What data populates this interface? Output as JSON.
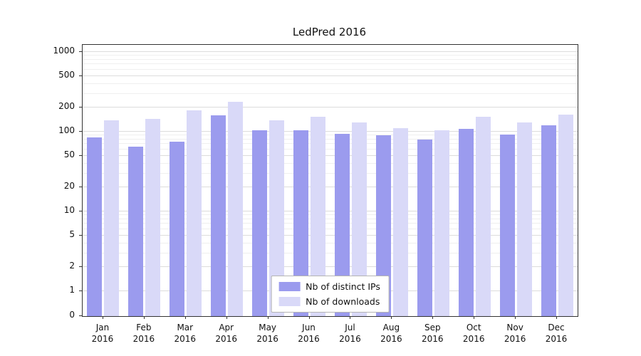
{
  "chart_data": {
    "type": "bar",
    "title": "LedPred 2016",
    "categories": [
      "Jan",
      "Feb",
      "Mar",
      "Apr",
      "May",
      "Jun",
      "Jul",
      "Aug",
      "Sep",
      "Oct",
      "Nov",
      "Dec"
    ],
    "year": "2016",
    "series": [
      {
        "name": "Nb of distinct IPs",
        "color": "#9b9bee",
        "values": [
          85,
          65,
          75,
          160,
          105,
          105,
          95,
          90,
          80,
          108,
          92,
          120
        ]
      },
      {
        "name": "Nb of downloads",
        "color": "#d9d9f8",
        "values": [
          140,
          145,
          185,
          235,
          140,
          155,
          130,
          112,
          105,
          155,
          130,
          165
        ]
      }
    ],
    "y_ticks": [
      0,
      1,
      2,
      5,
      10,
      20,
      50,
      100,
      200,
      500,
      1000
    ],
    "y_scale": "symlog",
    "ylim": [
      0,
      1200
    ],
    "grid": true,
    "legend_position": "bottom-center"
  }
}
